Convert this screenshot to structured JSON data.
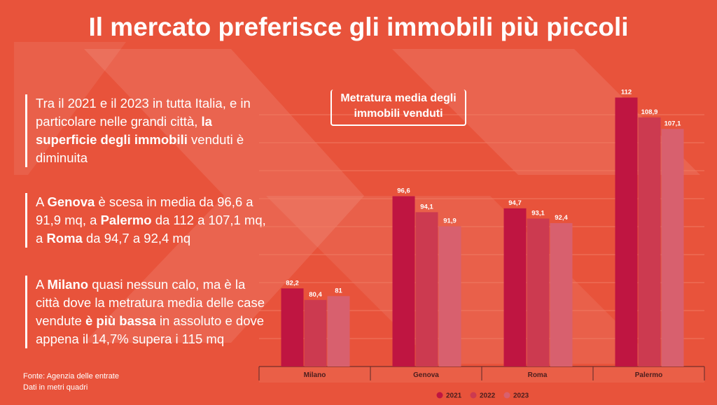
{
  "header": {
    "title": "Il mercato preferisce gli immobili più piccoli"
  },
  "paragraphs": [
    [
      {
        "text": "Tra il 2021 e il 2023 in tutta Italia, e in particolare nelle grandi città, ",
        "bold": false
      },
      {
        "text": "la superficie degli immobili",
        "bold": true
      },
      {
        "text": " venduti è diminuita",
        "bold": false
      }
    ],
    [
      {
        "text": "A ",
        "bold": false
      },
      {
        "text": "Genova",
        "bold": true
      },
      {
        "text": " è scesa in media da 96,6 a 91,9 mq, a ",
        "bold": false
      },
      {
        "text": "Palermo",
        "bold": true
      },
      {
        "text": " da 112 a 107,1 mq, a ",
        "bold": false
      },
      {
        "text": "Roma",
        "bold": true
      },
      {
        "text": " da 94,7 a 92,4 mq",
        "bold": false
      }
    ],
    [
      {
        "text": "A ",
        "bold": false
      },
      {
        "text": "Milano",
        "bold": true
      },
      {
        "text": " quasi nessun calo, ma è la città dove la metratura media delle case vendute ",
        "bold": false
      },
      {
        "text": "è più bassa",
        "bold": true
      },
      {
        "text": " in assoluto e dove appena il 14,7% supera i 115 mq",
        "bold": false
      }
    ]
  ],
  "source": [
    "Fonte: Agenzia delle entrate",
    "Dati in metri quadri"
  ],
  "chart_data": {
    "type": "bar",
    "title": "Metratura media degli immobili venduti",
    "categories": [
      "Milano",
      "Genova",
      "Roma",
      "Palermo"
    ],
    "series": [
      {
        "name": "2021",
        "color": "#bf1541",
        "values": [
          82.2,
          96.6,
          94.7,
          112
        ],
        "value_labels": [
          "82,2",
          "96,6",
          "94,7",
          "112"
        ]
      },
      {
        "name": "2022",
        "color": "#cc3a50",
        "values": [
          80.4,
          94.1,
          93.1,
          108.9
        ],
        "value_labels": [
          "80,4",
          "94,1",
          "93,1",
          "108,9"
        ]
      },
      {
        "name": "2023",
        "color": "#d8606e",
        "values": [
          81,
          91.9,
          92.4,
          107.1
        ],
        "value_labels": [
          "81",
          "91,9",
          "92,4",
          "107,1"
        ]
      }
    ],
    "ylim": [
      70,
      115
    ],
    "legend": "bottom"
  }
}
